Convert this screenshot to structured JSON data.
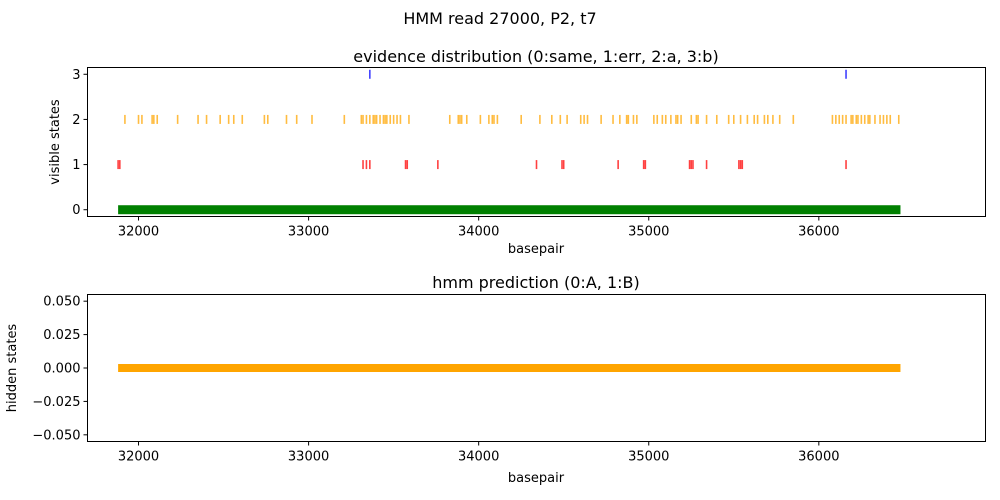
{
  "figure": {
    "title": "HMM read 27000, P2, t7"
  },
  "chart_data": [
    {
      "type": "scatter",
      "title": "evidence distribution (0:same, 1:err, 2:a, 3:b)",
      "xlabel": "basepair",
      "ylabel": "visible states",
      "xlim": [
        31700,
        36980
      ],
      "ylim": [
        -0.15,
        3.15
      ],
      "x_ticks": [
        32000,
        33000,
        34000,
        35000,
        36000
      ],
      "y_ticks": [
        0,
        1,
        2,
        3
      ],
      "grid": false,
      "legend": "none",
      "marker": "vertical-tick",
      "series": [
        {
          "state": 0,
          "color": "#008000",
          "style": "dense-band",
          "x_range": [
            31880,
            36480
          ]
        },
        {
          "state": 1,
          "color": "#ff0000",
          "x": [
            31880,
            31890,
            33320,
            33340,
            33360,
            33570,
            33580,
            33760,
            34340,
            34490,
            34500,
            34820,
            34970,
            34980,
            35240,
            35250,
            35260,
            35340,
            35530,
            35540,
            35550,
            36160
          ]
        },
        {
          "state": 2,
          "color": "#ffa500",
          "x": [
            31920,
            32000,
            32020,
            32080,
            32090,
            32110,
            32230,
            32350,
            32400,
            32480,
            32530,
            32560,
            32610,
            32740,
            32760,
            32870,
            32930,
            33020,
            33210,
            33310,
            33320,
            33340,
            33360,
            33380,
            33390,
            33400,
            33420,
            33440,
            33450,
            33460,
            33480,
            33500,
            33520,
            33540,
            33590,
            33830,
            33880,
            33890,
            33900,
            33930,
            34010,
            34060,
            34080,
            34090,
            34110,
            34250,
            34360,
            34430,
            34480,
            34520,
            34600,
            34620,
            34640,
            34720,
            34790,
            34830,
            34870,
            34880,
            34910,
            34930,
            35030,
            35050,
            35080,
            35100,
            35130,
            35160,
            35170,
            35190,
            35250,
            35280,
            35290,
            35340,
            35400,
            35470,
            35500,
            35540,
            35580,
            35620,
            35640,
            35680,
            35700,
            35730,
            35770,
            35850,
            36080,
            36100,
            36120,
            36140,
            36160,
            36190,
            36200,
            36220,
            36230,
            36250,
            36270,
            36290,
            36300,
            36330,
            36360,
            36380,
            36400,
            36420,
            36470
          ]
        },
        {
          "state": 3,
          "color": "#0000ff",
          "x": [
            33360,
            36160
          ]
        }
      ]
    },
    {
      "type": "line",
      "title": "hmm prediction (0:A, 1:B)",
      "xlabel": "basepair",
      "ylabel": "hidden states",
      "xlim": [
        31700,
        36980
      ],
      "ylim": [
        -0.055,
        0.055
      ],
      "x_ticks": [
        32000,
        33000,
        34000,
        35000,
        36000
      ],
      "y_ticks": [
        -0.05,
        -0.025,
        0.0,
        0.025,
        0.05
      ],
      "y_tick_labels": [
        "−0.050",
        "−0.025",
        "0.000",
        "0.025",
        "0.050"
      ],
      "grid": false,
      "legend": "none",
      "series": [
        {
          "color": "#ffa500",
          "x": [
            31880,
            36480
          ],
          "values": [
            0,
            0
          ]
        }
      ]
    }
  ]
}
